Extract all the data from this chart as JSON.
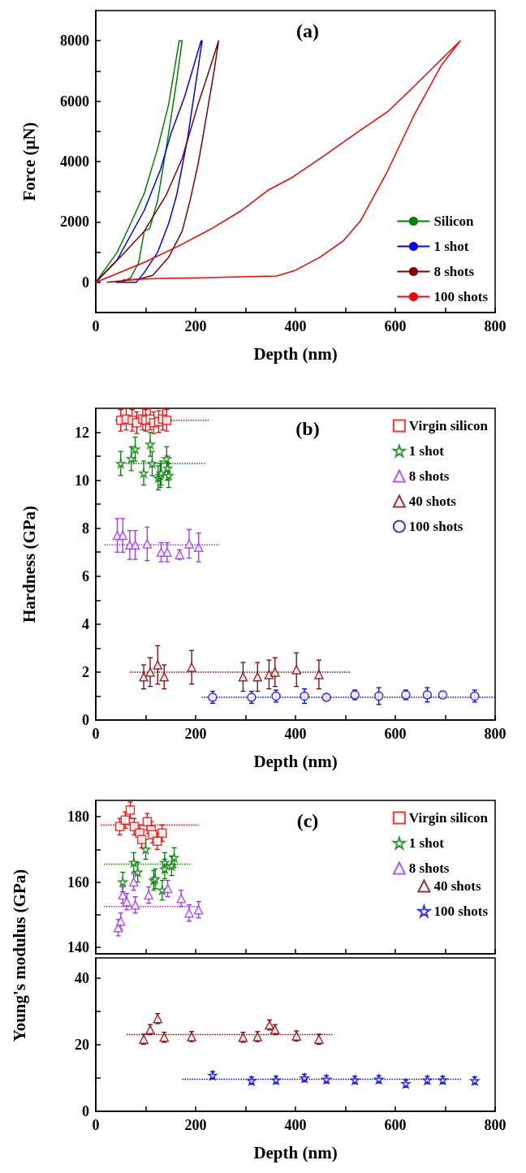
{
  "chart_data": [
    {
      "type": "line",
      "title": "(a)",
      "xlabel": "Depth (nm)",
      "ylabel": "Force (μN)",
      "xlim": [
        0,
        800
      ],
      "xticks": [
        0,
        {
          "value": 100,
          "label": null
        },
        200,
        {
          "value": 300,
          "label": null
        },
        400,
        {
          "value": 500,
          "label": null
        },
        600,
        {
          "value": 700,
          "label": null
        },
        800
      ],
      "ylim": [
        -1000,
        9000
      ],
      "yticks": [
        0,
        {
          "value": 1000,
          "label": null
        },
        2000,
        {
          "value": 3000,
          "label": null
        },
        4000,
        {
          "value": 5000,
          "label": null
        },
        6000,
        {
          "value": 7000,
          "label": null
        },
        8000
      ],
      "legend": "bottom right",
      "series": [
        {
          "name": "Silicon",
          "color": "#008000",
          "x": [
            0,
            43,
            70,
            97,
            124,
            146,
            167,
            173,
            162,
            146,
            124,
            108,
            97,
            86,
            70,
            54
          ],
          "values": [
            0,
            1000,
            1950,
            2940,
            4440,
            5900,
            8000,
            8000,
            6670,
            4950,
            2720,
            1780,
            1690,
            660,
            150,
            20
          ]
        },
        {
          "name": "1 shot",
          "color": "#0000ff",
          "x": [
            0,
            43,
            97,
            130,
            151,
            178,
            211,
            213,
            205,
            184,
            162,
            146,
            124,
            97,
            81,
            40
          ],
          "values": [
            0,
            750,
            2380,
            3750,
            4950,
            6150,
            8000,
            8000,
            7100,
            4780,
            2890,
            1950,
            1000,
            320,
            0,
            0
          ]
        },
        {
          "name": "8 shots",
          "color": "#800000",
          "x": [
            0,
            54,
            97,
            141,
            173,
            205,
            227,
            246,
            238,
            216,
            205,
            189,
            173,
            146,
            114,
            86,
            22
          ],
          "values": [
            0,
            920,
            1690,
            2890,
            4100,
            5900,
            7010,
            8000,
            7100,
            4950,
            3920,
            2720,
            1690,
            830,
            230,
            100,
            0
          ]
        },
        {
          "name": "100 shots",
          "color": "#ff0000",
          "x": [
            0,
            97,
            168,
            232,
            292,
            346,
            395,
            449,
            530,
            584,
            638,
            730,
            692,
            638,
            584,
            530,
            497,
            449,
            400,
            362,
            205,
            130,
            54
          ],
          "values": [
            0,
            660,
            1220,
            1780,
            2380,
            3060,
            3490,
            4100,
            5040,
            5640,
            6500,
            8000,
            7180,
            5550,
            3670,
            2030,
            1390,
            830,
            400,
            210,
            150,
            130,
            80
          ]
        }
      ]
    },
    {
      "type": "scatter",
      "title": "(b)",
      "xlabel": "Depth (nm)",
      "ylabel": "Hardness (GPa)",
      "xlim": [
        0,
        800
      ],
      "xticks": [
        0,
        {
          "value": 100,
          "label": null
        },
        200,
        {
          "value": 300,
          "label": null
        },
        400,
        {
          "value": 500,
          "label": null
        },
        600,
        {
          "value": 700,
          "label": null
        },
        800
      ],
      "ylim": [
        0,
        13
      ],
      "yticks": [
        0,
        {
          "value": 1,
          "label": null
        },
        2,
        {
          "value": 3,
          "label": null
        },
        4,
        {
          "value": 5,
          "label": null
        },
        6,
        {
          "value": 7,
          "label": null
        },
        8,
        {
          "value": 9,
          "label": null
        },
        10,
        {
          "value": 11,
          "label": null
        },
        12
      ],
      "legend": "top right",
      "series": [
        {
          "name": "Virgin silicon",
          "color": "#ff0000",
          "marker": "square",
          "x": [
            50,
            61,
            73,
            82,
            94,
            100,
            109,
            116,
            126,
            134,
            142
          ],
          "values": [
            12.5,
            12.55,
            12.5,
            12.4,
            12.55,
            12.5,
            12.55,
            12.4,
            12.45,
            12.55,
            12.5
          ],
          "errors": [
            0.45,
            0.45,
            0.45,
            0.45,
            0.45,
            0.45,
            0.45,
            0.45,
            0.45,
            0.45,
            0.45
          ]
        },
        {
          "name": "1 shot",
          "color": "#008000",
          "marker": "star",
          "x": [
            50,
            71,
            79,
            96,
            109,
            113,
            125,
            129,
            131,
            142,
            144,
            146
          ],
          "values": [
            10.7,
            10.9,
            11.3,
            10.3,
            11.5,
            10.7,
            10.1,
            10.2,
            10.3,
            10.9,
            10.5,
            10.2
          ],
          "errors": [
            0.5,
            0.5,
            0.5,
            0.5,
            0.5,
            0.5,
            0.5,
            0.5,
            0.5,
            0.5,
            0.5,
            0.5
          ]
        },
        {
          "name": "8 shots",
          "color": "#9933ff",
          "marker": "triangle",
          "x": [
            43,
            54,
            68,
            79,
            103,
            131,
            143,
            168,
            187,
            206
          ],
          "values": [
            7.7,
            7.7,
            7.3,
            7.3,
            7.35,
            7.0,
            7.0,
            6.9,
            7.35,
            7.2
          ],
          "errors": [
            0.7,
            0.7,
            0.6,
            0.6,
            0.7,
            0.4,
            0.4,
            0.2,
            0.6,
            0.6
          ]
        },
        {
          "name": "40 shots",
          "color": "#800000",
          "marker": "triangle",
          "x": [
            96,
            109,
            124,
            137,
            192,
            295,
            324,
            347,
            359,
            402,
            447
          ],
          "values": [
            1.8,
            2.0,
            2.3,
            1.8,
            2.2,
            1.8,
            1.8,
            1.9,
            2.0,
            2.1,
            1.9
          ],
          "errors": [
            0.5,
            0.6,
            0.8,
            0.5,
            0.7,
            0.6,
            0.6,
            0.6,
            0.6,
            0.7,
            0.6
          ]
        },
        {
          "name": "100 shots",
          "color": "#0000ff",
          "marker": "circle",
          "x": [
            234,
            312,
            361,
            418,
            462,
            519,
            567,
            621,
            664,
            695,
            759
          ],
          "values": [
            0.95,
            0.95,
            1.0,
            1.0,
            0.95,
            1.05,
            1.0,
            1.05,
            1.05,
            1.05,
            1.0
          ],
          "errors": [
            0.25,
            0.25,
            0.25,
            0.3,
            0.1,
            0.2,
            0.35,
            0.2,
            0.3,
            0.1,
            0.25
          ]
        },
        {
          "type": "line",
          "color": "#ff0000",
          "marker": "none",
          "line_style": "dotted",
          "x": [
            39,
            226
          ],
          "values": [
            12.5,
            12.5
          ]
        },
        {
          "type": "line",
          "color": "#008000",
          "marker": "none",
          "line_style": "dotted",
          "x": [
            60,
            219
          ],
          "values": [
            10.7,
            10.7
          ]
        },
        {
          "type": "line",
          "color": "#9933ff",
          "marker": "none",
          "line_style": "dotted",
          "x": [
            17,
            248
          ],
          "values": [
            7.3,
            7.3
          ]
        },
        {
          "type": "line",
          "color": "#800000",
          "marker": "none",
          "line_style": "dotted",
          "x": [
            68,
            510
          ],
          "values": [
            2.0,
            2.0
          ]
        },
        {
          "type": "line",
          "color": "#0000ff",
          "marker": "none",
          "line_style": "dotted",
          "x": [
            212,
            800
          ],
          "values": [
            0.95,
            0.95
          ]
        }
      ]
    },
    {
      "type": "scatter",
      "title": "(c)",
      "tick_labels": "y",
      "xlim": [
        0,
        800
      ],
      "xticks": [
        0,
        {
          "value": 100,
          "label": null
        },
        200,
        {
          "value": 300,
          "label": null
        },
        400,
        {
          "value": 500,
          "label": null
        },
        600,
        {
          "value": 700,
          "label": null
        },
        800
      ],
      "ylim": [
        138,
        185
      ],
      "yticks": [
        140,
        {
          "value": 150,
          "label": null
        },
        160,
        {
          "value": 170,
          "label": null
        },
        180
      ],
      "legend": "top right",
      "series": [
        {
          "name": "Virgin silicon",
          "color": "#ff0000",
          "marker": "square",
          "x": [
            48,
            59,
            69,
            77,
            88,
            92,
            103,
            111,
            114,
            123,
            133
          ],
          "values": [
            177,
            179,
            182,
            177,
            175,
            173,
            178.5,
            176,
            174.5,
            172.5,
            175
          ],
          "errors": [
            2.5,
            2.5,
            2.5,
            2.5,
            2.5,
            2.5,
            2.5,
            2.5,
            2.5,
            2.5,
            2.5
          ]
        },
        {
          "name": "1 shot",
          "color": "#008000",
          "marker": "star",
          "x": [
            54,
            76,
            84,
            100,
            116,
            119,
            133,
            138,
            138,
            152,
            157
          ],
          "values": [
            160,
            166,
            163,
            170,
            160.5,
            161,
            157.5,
            166,
            164,
            165,
            167.5
          ],
          "errors": [
            3,
            3,
            3,
            3,
            3,
            3,
            3,
            3,
            3,
            3,
            3
          ]
        },
        {
          "name": "8 shots",
          "color": "#9933ff",
          "marker": "triangle",
          "x": [
            45,
            50,
            54,
            62,
            76,
            79,
            106,
            144,
            171,
            187,
            206
          ],
          "values": [
            146,
            148,
            156,
            154,
            160,
            153,
            156,
            158,
            155,
            150.5,
            151.5
          ],
          "errors": [
            2.5,
            2.5,
            2.5,
            2.5,
            2.5,
            2.5,
            2.5,
            2.5,
            2.5,
            2.5,
            2.5
          ]
        },
        {
          "type": "line",
          "color": "#ff0000",
          "marker": "none",
          "line_style": "dotted",
          "x": [
            10,
            206
          ],
          "values": [
            177.5,
            177.5
          ]
        },
        {
          "type": "line",
          "color": "#008000",
          "marker": "none",
          "line_style": "dotted",
          "x": [
            16,
            192
          ],
          "values": [
            165.5,
            165.5
          ]
        },
        {
          "type": "line",
          "color": "#9933ff",
          "marker": "none",
          "line_style": "dotted",
          "x": [
            16,
            206
          ],
          "values": [
            152.5,
            152.5
          ]
        }
      ]
    },
    {
      "type": "scatter",
      "xlabel": "Depth (nm)",
      "ylabel": "Young's modulus (GPa)",
      "xlim": [
        0,
        800
      ],
      "xticks": [
        0,
        {
          "value": 100,
          "label": null
        },
        200,
        {
          "value": 300,
          "label": null
        },
        400,
        {
          "value": 500,
          "label": null
        },
        600,
        {
          "value": 700,
          "label": null
        },
        800
      ],
      "ylim": [
        0,
        46
      ],
      "yticks": [
        0,
        {
          "value": 10,
          "label": null
        },
        20,
        {
          "value": 30,
          "label": null
        },
        40
      ],
      "legend": "top right",
      "series": [
        {
          "name": "40 shots",
          "color": "#800000",
          "marker": "triangle",
          "x": [
            96,
            109,
            124,
            137,
            192,
            295,
            324,
            348,
            359,
            402,
            447
          ],
          "values": [
            21.6,
            24.5,
            27.8,
            22.2,
            22.4,
            22.2,
            22.4,
            25.9,
            24.5,
            22.6,
            21.6
          ],
          "errors": [
            1.5,
            1.5,
            1.5,
            1.5,
            1.5,
            1.5,
            1.5,
            1.5,
            1.5,
            1.5,
            1.5
          ]
        },
        {
          "name": "100 shots",
          "color": "#0000ff",
          "marker": "star",
          "x": [
            234,
            312,
            361,
            418,
            462,
            519,
            567,
            621,
            664,
            695,
            759
          ],
          "values": [
            10.8,
            9.2,
            9.4,
            10,
            9.6,
            9.4,
            9.6,
            8.3,
            9.4,
            9.4,
            9.2
          ],
          "errors": [
            1.1,
            1.1,
            1.1,
            1.1,
            1.1,
            1.1,
            1.1,
            1.1,
            1.1,
            1.1,
            1.1
          ]
        },
        {
          "type": "line",
          "color": "#800000",
          "marker": "none",
          "line_style": "dotted",
          "x": [
            62,
            474
          ],
          "values": [
            23,
            23
          ]
        },
        {
          "type": "line",
          "color": "#0000ff",
          "marker": "none",
          "line_style": "dotted",
          "x": [
            173,
            734
          ],
          "values": [
            9.6,
            9.6
          ]
        }
      ]
    }
  ]
}
